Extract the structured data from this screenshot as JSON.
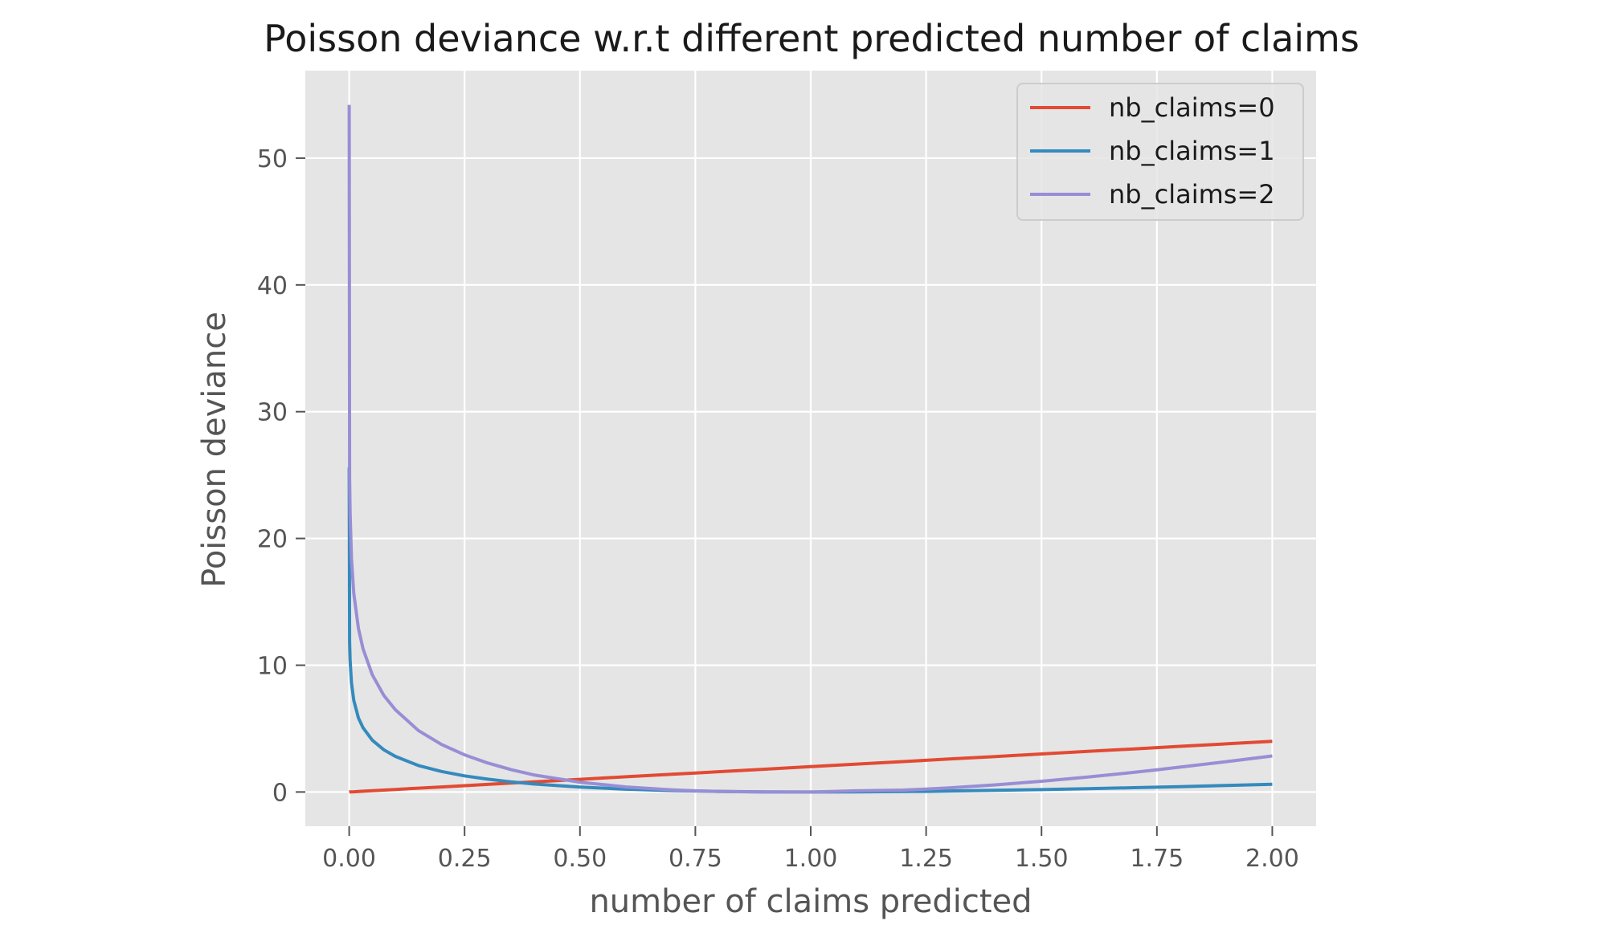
{
  "chart_data": {
    "type": "line",
    "title": "Poisson deviance w.r.t different predicted number of claims",
    "xlabel": "number of claims predicted",
    "ylabel": "Poisson deviance",
    "xlim": [
      -0.095,
      2.095
    ],
    "ylim": [
      -2.7,
      56.9
    ],
    "xticks": [
      0.0,
      0.25,
      0.5,
      0.75,
      1.0,
      1.25,
      1.5,
      1.75,
      2.0
    ],
    "xtick_labels": [
      "0.00",
      "0.25",
      "0.50",
      "0.75",
      "1.00",
      "1.25",
      "1.50",
      "1.75",
      "2.00"
    ],
    "yticks": [
      0,
      10,
      20,
      30,
      40,
      50
    ],
    "ytick_labels": [
      "0",
      "10",
      "20",
      "30",
      "40",
      "50"
    ],
    "grid": true,
    "legend_position": "top-right",
    "colors": {
      "background": "#e5e5e5",
      "grid": "#ffffff",
      "nb_claims_0": "#e24a33",
      "nb_claims_1": "#348abd",
      "nb_claims_2": "#988ed5"
    },
    "x": [
      1e-06,
      0.001,
      0.002,
      0.005,
      0.01,
      0.02,
      0.03,
      0.05,
      0.075,
      0.1,
      0.15,
      0.2,
      0.25,
      0.3,
      0.35,
      0.4,
      0.5,
      0.6,
      0.7,
      0.75,
      0.8,
      0.9,
      1.0,
      1.1,
      1.2,
      1.25,
      1.3,
      1.4,
      1.5,
      1.6,
      1.7,
      1.75,
      1.8,
      1.9,
      2.0
    ],
    "series": [
      {
        "name": "nb_claims=0",
        "color": "#e24a33",
        "values": [
          0.0,
          0.002,
          0.004,
          0.01,
          0.02,
          0.04,
          0.06,
          0.1,
          0.15,
          0.2,
          0.3,
          0.4,
          0.5,
          0.6,
          0.7,
          0.8,
          1.0,
          1.2,
          1.4,
          1.5,
          1.6,
          1.8,
          2.0,
          2.2,
          2.4,
          2.5,
          2.6,
          2.8,
          3.0,
          3.2,
          3.4,
          3.5,
          3.6,
          3.8,
          4.0
        ]
      },
      {
        "name": "nb_claims=1",
        "color": "#348abd",
        "values": [
          25.6,
          11.82,
          10.44,
          8.61,
          7.23,
          5.84,
          5.07,
          4.09,
          3.33,
          2.81,
          2.09,
          1.62,
          1.27,
          1.01,
          0.8,
          0.63,
          0.39,
          0.22,
          0.11,
          0.08,
          0.05,
          0.01,
          0.0,
          0.01,
          0.04,
          0.05,
          0.08,
          0.13,
          0.19,
          0.26,
          0.34,
          0.38,
          0.42,
          0.52,
          0.61
        ]
      },
      {
        "name": "nb_claims=2",
        "color": "#988ed5",
        "values": [
          54.2,
          24.87,
          22.1,
          18.44,
          15.67,
          12.9,
          11.3,
          9.25,
          7.62,
          6.49,
          4.85,
          3.75,
          2.93,
          2.29,
          1.77,
          1.35,
          0.77,
          0.4,
          0.17,
          0.09,
          0.04,
          0.0,
          0.0,
          0.09,
          0.15,
          0.23,
          0.33,
          0.56,
          0.85,
          1.18,
          1.55,
          1.75,
          1.96,
          2.39,
          2.84
        ]
      }
    ]
  }
}
